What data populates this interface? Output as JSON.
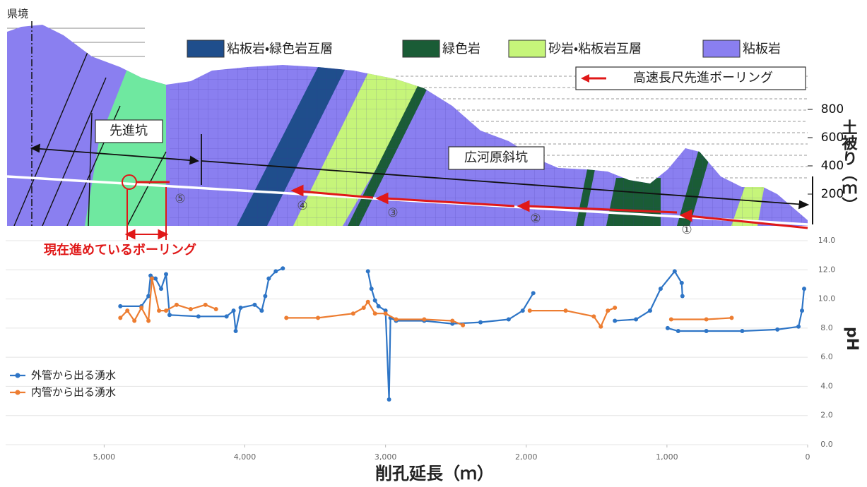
{
  "cross_section": {
    "legend": [
      {
        "name": "粘板岩・緑色岩互層",
        "color": "#1f4e8c"
      },
      {
        "name": "緑色岩",
        "color": "#1a5c36"
      },
      {
        "name": "砂岩・粘板岩互層",
        "color": "#c6f57a"
      },
      {
        "name": "粘板岩",
        "color": "#8a7ff0"
      }
    ],
    "border_label": "県境",
    "pilot_tunnel": "先進坑",
    "inclined_shaft": "広河原斜坑",
    "boring_label": "高速長尺先進ボーリング",
    "current_boring": "現在進めているボーリング",
    "segment_labels": [
      "①",
      "②",
      "③",
      "④",
      "⑤"
    ],
    "cover_axis_title": "土被り（ｍ）",
    "cover_ticks": [
      200,
      400,
      600,
      800
    ]
  },
  "chart_data": {
    "type": "line",
    "x_label": "削孔延長（ｍ）",
    "y_label": "pH",
    "xlim": [
      5700,
      0
    ],
    "xticks": [
      {
        "value": 5000,
        "label": "5,000"
      },
      {
        "value": 4000,
        "label": "4,000"
      },
      {
        "value": 3000,
        "label": "3,000"
      },
      {
        "value": 2000,
        "label": "2,000"
      },
      {
        "value": 1000,
        "label": "1,000"
      },
      0
    ],
    "ylim": [
      0,
      14
    ],
    "yticks": [
      {
        "value": 0,
        "label": "0.0"
      },
      {
        "value": 2,
        "label": "2.0"
      },
      {
        "value": 4,
        "label": "4.0"
      },
      {
        "value": 6,
        "label": "6.0"
      },
      {
        "value": 8,
        "label": "8.0"
      },
      {
        "value": 10,
        "label": "10.0"
      },
      {
        "value": 12,
        "label": "12.0"
      },
      {
        "value": 14,
        "label": "14.0"
      }
    ],
    "grid": true,
    "legend_position": "left",
    "series": [
      {
        "name": "外管から出る湧水",
        "color": "#2e75c6",
        "x": [
          4885,
          4735,
          4685,
          4670,
          4635,
          4595,
          4560,
          4535,
          4330,
          4130,
          4080,
          4065,
          4030,
          3930,
          3880,
          3855,
          3830,
          3780,
          3730,
          null,
          3125,
          3100,
          3075,
          3050,
          3000,
          2975,
          2965,
          2925,
          2725,
          2525,
          2325,
          2125,
          2025,
          1950,
          null,
          1370,
          1220,
          1120,
          1045,
          945,
          895,
          890,
          null,
          995,
          920,
          720,
          465,
          215,
          65,
          40,
          25
        ],
        "values": [
          9.5,
          9.5,
          10.2,
          11.6,
          11.4,
          10.7,
          11.7,
          8.9,
          8.8,
          8.8,
          9.2,
          7.8,
          9.4,
          9.6,
          9.2,
          10.2,
          11.4,
          11.9,
          12.1,
          null,
          11.9,
          10.7,
          9.9,
          9.5,
          9.2,
          3.1,
          8.7,
          8.5,
          8.5,
          8.3,
          8.4,
          8.6,
          9.2,
          10.4,
          null,
          8.5,
          8.6,
          9.2,
          10.7,
          11.9,
          11.1,
          10.2,
          null,
          8.0,
          7.8,
          7.8,
          7.8,
          7.9,
          8.1,
          9.2,
          10.7
        ]
      },
      {
        "name": "内管から出る湧水",
        "color": "#ed7d31",
        "x": [
          4885,
          4835,
          4785,
          4735,
          4685,
          4660,
          4610,
          4560,
          4485,
          4385,
          4280,
          4205,
          null,
          3705,
          3480,
          3230,
          3155,
          3125,
          3075,
          3000,
          2925,
          2725,
          2525,
          2450,
          null,
          1975,
          1720,
          1520,
          1470,
          1420,
          1370,
          null,
          970,
          720,
          540
        ],
        "values": [
          8.7,
          9.2,
          8.5,
          9.4,
          8.5,
          11.4,
          9.2,
          9.2,
          9.6,
          9.3,
          9.6,
          9.3,
          null,
          8.7,
          8.7,
          9.0,
          9.4,
          9.8,
          9.0,
          9.0,
          8.6,
          8.6,
          8.5,
          8.2,
          null,
          9.2,
          9.2,
          8.8,
          8.1,
          9.2,
          9.4,
          null,
          8.6,
          8.6,
          8.7
        ]
      }
    ]
  }
}
